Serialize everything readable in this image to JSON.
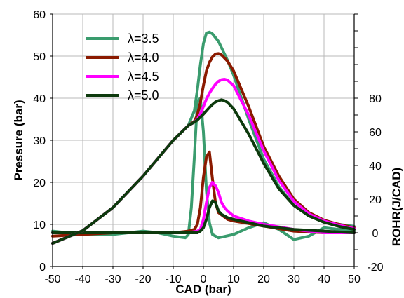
{
  "chart_data": {
    "type": "line",
    "xlabel": "CAD (bar)",
    "ylabel": "Pressure (bar)",
    "y2label": "ROHR(J/CAD)",
    "xlim": [
      -50,
      50
    ],
    "ylim": [
      0,
      60
    ],
    "y2lim": [
      -20,
      130
    ],
    "xticks": [
      -50,
      -40,
      -30,
      -20,
      -10,
      0,
      10,
      20,
      30,
      40,
      50
    ],
    "yticks": [
      0,
      10,
      20,
      30,
      40,
      50,
      60
    ],
    "y2ticks": [
      -20,
      0,
      20,
      40,
      60,
      80
    ],
    "grid": true,
    "legend": "top-left",
    "pressure_series": [
      {
        "name": "λ=3.5",
        "color": "#3a9c6e",
        "x": [
          -50,
          -40,
          -30,
          -20,
          -10,
          -5,
          -3,
          -2,
          -1,
          0,
          1,
          2,
          3,
          5,
          8,
          10,
          15,
          20,
          25,
          30,
          35,
          40,
          45,
          50
        ],
        "y": [
          5.5,
          8.5,
          14,
          21.5,
          30,
          33.5,
          37,
          42,
          48,
          53,
          55.5,
          55.7,
          55.3,
          53.5,
          49,
          45.5,
          35,
          25.5,
          19,
          14.5,
          12,
          10.8,
          10,
          9.5
        ]
      },
      {
        "name": "λ=4.0",
        "color": "#8b1a00",
        "x": [
          -50,
          -40,
          -30,
          -20,
          -10,
          -5,
          -3,
          -2,
          -1,
          0,
          1,
          2,
          3,
          4,
          5,
          6,
          8,
          10,
          15,
          20,
          25,
          30,
          35,
          40,
          45,
          50
        ],
        "y": [
          5.5,
          8.5,
          14,
          21.5,
          30,
          33.5,
          34.5,
          36,
          39,
          43,
          46.5,
          48.5,
          49.8,
          50.5,
          50.6,
          50.3,
          48.8,
          46.5,
          38,
          28.5,
          21.5,
          16,
          12.8,
          11,
          10,
          9.2
        ]
      },
      {
        "name": "λ=4.5",
        "color": "#ff00ff",
        "x": [
          -50,
          -40,
          -30,
          -20,
          -10,
          -5,
          -3,
          -2,
          -1,
          0,
          1,
          2,
          3,
          4,
          5,
          6,
          7,
          8,
          10,
          15,
          20,
          25,
          30,
          35,
          40,
          45,
          50
        ],
        "y": [
          5.5,
          8.5,
          14,
          21.5,
          30,
          33.5,
          34.3,
          35,
          36.3,
          38,
          39.8,
          41.2,
          42.3,
          43.3,
          44,
          44.4,
          44.5,
          44.3,
          43,
          36,
          27.5,
          20.5,
          15.5,
          12.5,
          10.8,
          9.8,
          9
        ]
      },
      {
        "name": "λ=5.0",
        "color": "#0d3a0d",
        "x": [
          -50,
          -40,
          -30,
          -20,
          -10,
          -5,
          -3,
          -2,
          -1,
          0,
          1,
          2,
          3,
          4,
          5,
          6,
          7,
          8,
          10,
          15,
          20,
          25,
          30,
          35,
          40,
          45,
          50
        ],
        "y": [
          5.5,
          8.5,
          14,
          21.5,
          30,
          33.5,
          34.3,
          34.8,
          35.5,
          36.2,
          37,
          37.8,
          38.5,
          39.1,
          39.4,
          39.6,
          39.4,
          39,
          37.5,
          31.5,
          24.5,
          18.5,
          14.5,
          12,
          10.5,
          9.5,
          8.8
        ]
      }
    ],
    "rohr_series": [
      {
        "name": "λ=3.5",
        "color": "#3a9c6e",
        "x": [
          -50,
          -40,
          -30,
          -20,
          -15,
          -10,
          -6,
          -5,
          -4,
          -3,
          -2,
          -1,
          0,
          1,
          2,
          3,
          5,
          10,
          15,
          20,
          25,
          30,
          35,
          40,
          45,
          50
        ],
        "y": [
          1,
          -1,
          -1,
          1,
          0,
          -2,
          -3,
          -1,
          15,
          45,
          78,
          80,
          60,
          25,
          6,
          -1,
          -3,
          -1,
          3,
          6,
          2,
          -4,
          -2,
          3,
          2,
          1
        ]
      },
      {
        "name": "λ=4.0",
        "color": "#8b1a00",
        "x": [
          -50,
          -40,
          -30,
          -20,
          -10,
          -5,
          -3,
          -2,
          -1,
          0,
          1,
          2,
          3,
          4,
          5,
          8,
          10,
          20,
          30,
          40,
          50
        ],
        "y": [
          -2,
          -1,
          0,
          0,
          0,
          1,
          2,
          5,
          15,
          33,
          45,
          48,
          32,
          18,
          12,
          8,
          7,
          4,
          1,
          0,
          0
        ]
      },
      {
        "name": "λ=4.5",
        "color": "#ff00ff",
        "x": [
          -50,
          -40,
          -30,
          -20,
          -10,
          -5,
          -2,
          -1,
          0,
          1,
          2,
          3,
          4,
          5,
          6,
          7,
          8,
          10,
          15,
          20,
          30,
          40,
          50
        ],
        "y": [
          0,
          0,
          0,
          0,
          0,
          0,
          1,
          2,
          8,
          18,
          27,
          30,
          28,
          24,
          18,
          15,
          13,
          10,
          7,
          5,
          2,
          0,
          0
        ]
      },
      {
        "name": "λ=5.0",
        "color": "#0d3a0d",
        "x": [
          -50,
          -40,
          -30,
          -20,
          -10,
          -5,
          -2,
          -1,
          0,
          1,
          2,
          3,
          4,
          5,
          6,
          7,
          8,
          10,
          15,
          20,
          30,
          40,
          50
        ],
        "y": [
          0,
          0,
          0,
          0,
          0,
          0,
          0,
          1,
          3,
          8,
          15,
          19,
          18,
          13,
          11,
          10,
          9,
          8,
          6,
          4,
          2,
          1,
          0
        ]
      }
    ]
  }
}
